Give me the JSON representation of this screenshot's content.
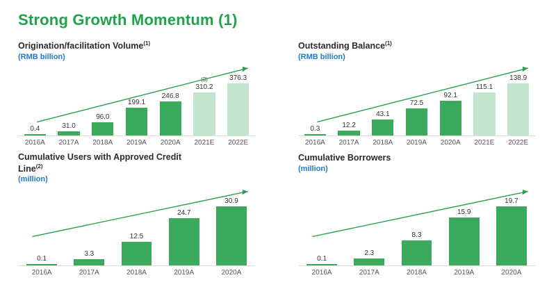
{
  "slide": {
    "title": "Strong Growth Momentum (1)"
  },
  "colors": {
    "title_green": "#1FA34A",
    "bar_actual": "#3BAA5C",
    "bar_estimate": "#C2E5CD",
    "unit_blue": "#1E7AD4",
    "arrow_green": "#2BA04F",
    "axis_gray": "#DCDCDC"
  },
  "chart_data": [
    {
      "type": "bar",
      "title": "Origination/facilitation Volume",
      "sup": "(1)",
      "unit": "(RMB billion)",
      "categories": [
        "2016A",
        "2017A",
        "2018A",
        "2019A",
        "2020A",
        "2021E",
        "2022E"
      ],
      "values": [
        0.4,
        31.0,
        96.0,
        199.1,
        246.8,
        310.2,
        376.3
      ],
      "labels": [
        "0.4",
        "31.0",
        "96.0",
        "199.1",
        "246.8",
        "310.2",
        "376.3"
      ],
      "notes": [
        "",
        "",
        "",
        "",
        "",
        "(3)",
        ""
      ],
      "estimate_start": 5,
      "ylim": [
        0,
        376.3
      ],
      "legend": "none",
      "grid": "off"
    },
    {
      "type": "bar",
      "title": "Outstanding Balance",
      "sup": "(1)",
      "unit": "(RMB billion)",
      "categories": [
        "2016A",
        "2017A",
        "2018A",
        "2019A",
        "2020A",
        "2021E",
        "2022E"
      ],
      "values": [
        0.3,
        12.2,
        43.1,
        72.5,
        92.1,
        115.1,
        138.9
      ],
      "labels": [
        "0.3",
        "12.2",
        "43.1",
        "72.5",
        "92.1",
        "115.1",
        "138.9"
      ],
      "notes": [
        "",
        "",
        "",
        "",
        "",
        "",
        ""
      ],
      "estimate_start": 5,
      "ylim": [
        0,
        138.9
      ],
      "legend": "none",
      "grid": "off"
    },
    {
      "type": "bar",
      "title": "Cumulative Users with Approved Credit Line",
      "sup": "(2)",
      "unit": "(million)",
      "categories": [
        "2016A",
        "2017A",
        "2018A",
        "2019A",
        "2020A"
      ],
      "values": [
        0.1,
        3.3,
        12.5,
        24.7,
        30.9
      ],
      "labels": [
        "0.1",
        "3.3",
        "12.5",
        "24.7",
        "30.9"
      ],
      "notes": [
        "",
        "",
        "",
        "",
        ""
      ],
      "estimate_start": null,
      "ylim": [
        0,
        30.9
      ],
      "legend": "none",
      "grid": "off"
    },
    {
      "type": "bar",
      "title": "Cumulative Borrowers",
      "sup": "",
      "unit": "(million)",
      "categories": [
        "2016A",
        "2017A",
        "2018A",
        "2019A",
        "2020A"
      ],
      "values": [
        0.1,
        2.3,
        8.3,
        15.9,
        19.7
      ],
      "labels": [
        "0.1",
        "2.3",
        "8.3",
        "15.9",
        "19.7"
      ],
      "notes": [
        "",
        "",
        "",
        "",
        ""
      ],
      "estimate_start": null,
      "ylim": [
        0,
        19.7
      ],
      "legend": "none",
      "grid": "off"
    }
  ]
}
